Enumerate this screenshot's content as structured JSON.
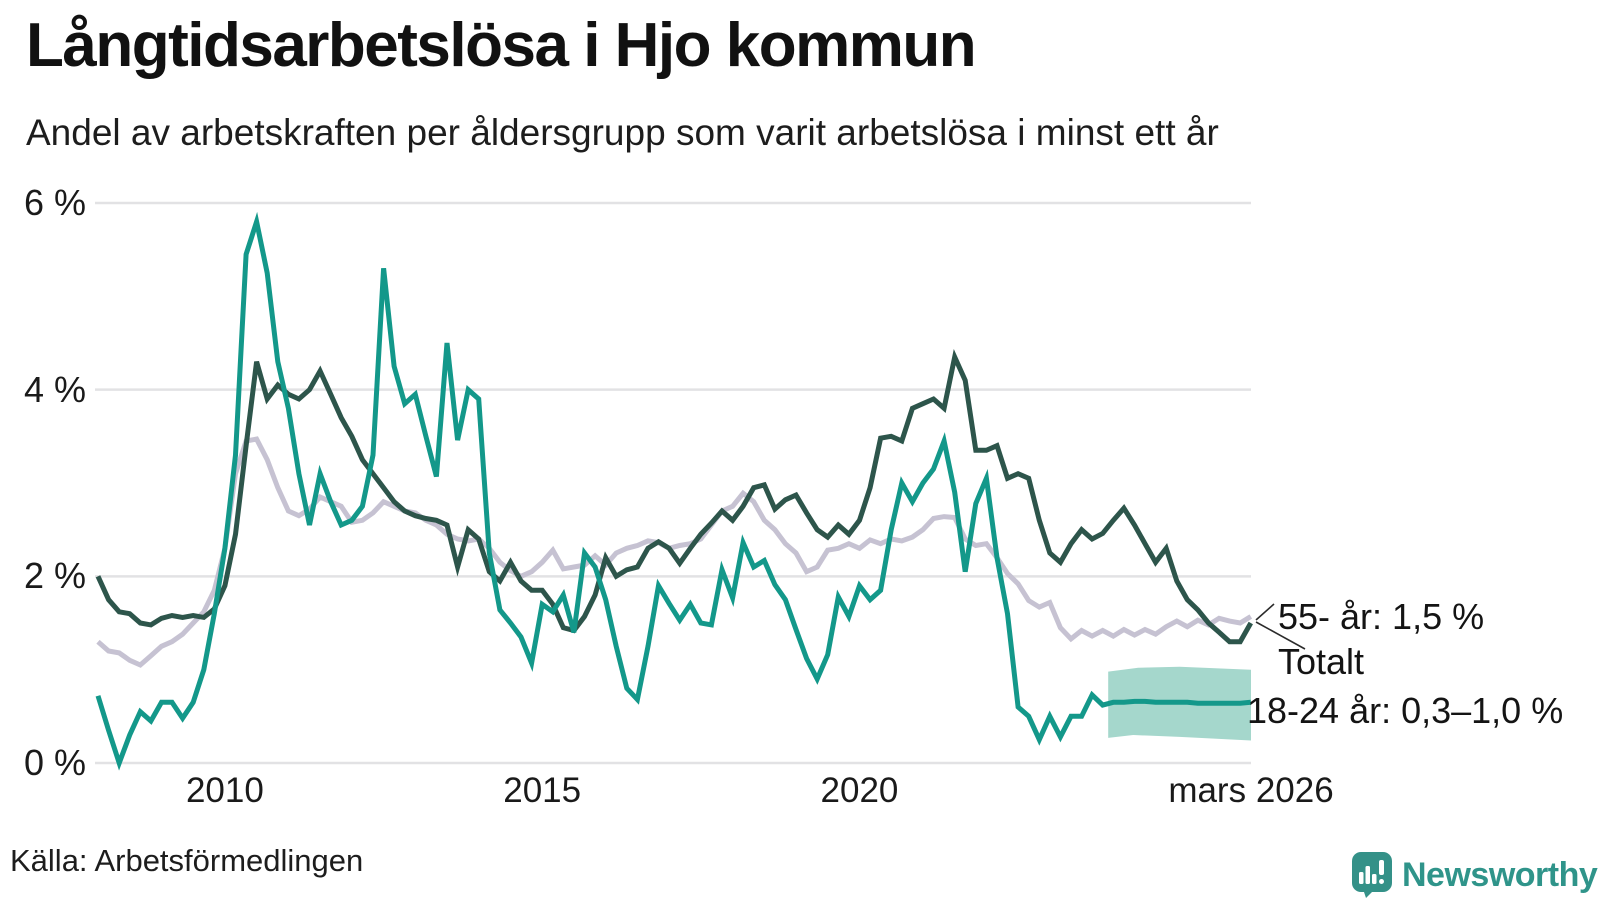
{
  "header": {
    "title": "Långtidsarbetslösa i Hjo kommun",
    "subtitle": "Andel av arbetskraften per åldersgrupp som varit arbetslösa i minst ett år"
  },
  "chart_data": {
    "type": "line",
    "title": "Långtidsarbetslösa i Hjo kommun",
    "subtitle": "Andel av arbetskraften per åldersgrupp som varit arbetslösa i minst ett år",
    "unit": "%",
    "x_axis": {
      "min": 2008.0,
      "max": 2026.17,
      "ticks": [
        {
          "year": 2010,
          "label": "2010"
        },
        {
          "year": 2015,
          "label": "2015"
        },
        {
          "year": 2020,
          "label": "2020"
        },
        {
          "year": 2026.17,
          "label": "mars 2026"
        }
      ]
    },
    "y_axis": {
      "min": 0,
      "max": 6,
      "grid": true,
      "ticks": [
        {
          "value": 6,
          "label": "6 %"
        },
        {
          "value": 4,
          "label": "4 %"
        },
        {
          "value": 2,
          "label": "2 %"
        },
        {
          "value": 0,
          "label": "0 %"
        }
      ]
    },
    "x_start": 2008.0,
    "x_step": 0.1666667,
    "series": [
      {
        "name": "Totalt",
        "key": "totalt",
        "color": "#c6c2d2",
        "end_value": 1.57,
        "values": [
          1.3,
          1.2,
          1.18,
          1.1,
          1.05,
          1.15,
          1.25,
          1.3,
          1.38,
          1.5,
          1.62,
          1.85,
          2.3,
          3.1,
          3.45,
          3.47,
          3.25,
          2.95,
          2.7,
          2.65,
          2.72,
          2.85,
          2.8,
          2.75,
          2.58,
          2.6,
          2.68,
          2.8,
          2.75,
          2.7,
          2.68,
          2.6,
          2.55,
          2.45,
          2.4,
          2.38,
          2.4,
          2.3,
          2.15,
          2.06,
          2.0,
          2.05,
          2.15,
          2.28,
          2.08,
          2.1,
          2.12,
          2.22,
          2.12,
          2.25,
          2.3,
          2.33,
          2.38,
          2.36,
          2.3,
          2.33,
          2.35,
          2.4,
          2.55,
          2.7,
          2.75,
          2.89,
          2.8,
          2.6,
          2.5,
          2.35,
          2.25,
          2.05,
          2.1,
          2.28,
          2.3,
          2.35,
          2.3,
          2.39,
          2.35,
          2.4,
          2.38,
          2.42,
          2.5,
          2.62,
          2.64,
          2.63,
          2.4,
          2.33,
          2.35,
          2.2,
          2.03,
          1.92,
          1.74,
          1.67,
          1.72,
          1.45,
          1.33,
          1.42,
          1.36,
          1.42,
          1.36,
          1.43,
          1.37,
          1.43,
          1.38,
          1.46,
          1.52,
          1.46,
          1.53,
          1.48,
          1.55,
          1.52,
          1.5,
          1.57
        ]
      },
      {
        "name": "55- år",
        "key": "55-ar",
        "color": "#2d554b",
        "end_value": 1.5,
        "values": [
          2.0,
          1.75,
          1.62,
          1.6,
          1.5,
          1.48,
          1.55,
          1.58,
          1.56,
          1.58,
          1.56,
          1.65,
          1.9,
          2.45,
          3.4,
          4.3,
          3.9,
          4.05,
          3.95,
          3.9,
          4.0,
          4.2,
          3.95,
          3.7,
          3.5,
          3.25,
          3.1,
          2.95,
          2.8,
          2.7,
          2.65,
          2.62,
          2.6,
          2.55,
          2.1,
          2.5,
          2.4,
          2.05,
          1.95,
          2.15,
          1.95,
          1.85,
          1.85,
          1.7,
          1.45,
          1.42,
          1.57,
          1.8,
          2.2,
          2.0,
          2.07,
          2.1,
          2.3,
          2.37,
          2.3,
          2.14,
          2.3,
          2.45,
          2.57,
          2.7,
          2.6,
          2.75,
          2.95,
          2.98,
          2.72,
          2.82,
          2.87,
          2.68,
          2.5,
          2.42,
          2.55,
          2.45,
          2.6,
          2.95,
          3.48,
          3.5,
          3.45,
          3.8,
          3.85,
          3.9,
          3.8,
          4.35,
          4.1,
          3.35,
          3.35,
          3.4,
          3.05,
          3.1,
          3.05,
          2.6,
          2.25,
          2.15,
          2.35,
          2.5,
          2.4,
          2.46,
          2.6,
          2.73,
          2.55,
          2.35,
          2.15,
          2.3,
          1.95,
          1.75,
          1.64,
          1.5,
          1.4,
          1.3,
          1.3,
          1.5
        ]
      },
      {
        "name": "18-24 år",
        "key": "18-24-ar",
        "color": "#13988a",
        "end_value_range": [
          0.3,
          1.0
        ],
        "values": [
          0.72,
          0.35,
          0.0,
          0.3,
          0.55,
          0.45,
          0.65,
          0.65,
          0.48,
          0.65,
          1.0,
          1.6,
          2.3,
          3.3,
          5.45,
          5.8,
          5.25,
          4.3,
          3.8,
          3.1,
          2.55,
          3.1,
          2.8,
          2.55,
          2.6,
          2.75,
          3.3,
          5.3,
          4.25,
          3.85,
          3.95,
          3.5,
          3.07,
          4.5,
          3.46,
          4.0,
          3.9,
          2.25,
          1.64,
          1.5,
          1.35,
          1.07,
          1.7,
          1.62,
          1.8,
          1.4,
          2.25,
          2.1,
          1.75,
          1.25,
          0.8,
          0.68,
          1.25,
          1.9,
          1.71,
          1.53,
          1.7,
          1.5,
          1.48,
          2.07,
          1.77,
          2.36,
          2.1,
          2.17,
          1.91,
          1.75,
          1.43,
          1.12,
          0.9,
          1.16,
          1.78,
          1.57,
          1.9,
          1.75,
          1.85,
          2.5,
          3.0,
          2.8,
          3.0,
          3.15,
          3.45,
          2.9,
          2.05,
          2.78,
          3.05,
          2.2,
          1.6,
          0.6,
          0.5,
          0.25,
          0.5,
          0.28,
          0.5,
          0.5,
          0.73,
          0.62,
          0.65,
          0.65,
          0.66,
          0.66,
          0.65,
          0.65,
          0.65,
          0.65,
          0.64,
          0.64,
          0.64,
          0.64,
          0.64,
          0.65
        ]
      }
    ],
    "forecast_band": {
      "series": "18-24 år",
      "x_start": 2023.92,
      "x_end": 2026.17,
      "upper": 1.02,
      "lower": 0.28,
      "color": "#a5d7cc"
    },
    "annotations": [
      {
        "text": "55- år: 1,5 %"
      },
      {
        "text": "Totalt"
      },
      {
        "text": "18-24 år: 0,3–1,0 %"
      }
    ],
    "theme": {
      "grid_color": "#e2e2e4",
      "connector_color": "#2b2b2b",
      "accent_teal": "#13988a",
      "accent_dark_green": "#2d554b",
      "accent_lavender": "#c6c2d2",
      "band_color": "#a5d7cc"
    }
  },
  "footer": {
    "source": "Källa: Arbetsförmedlingen",
    "logo_text": "Newsworthy"
  }
}
